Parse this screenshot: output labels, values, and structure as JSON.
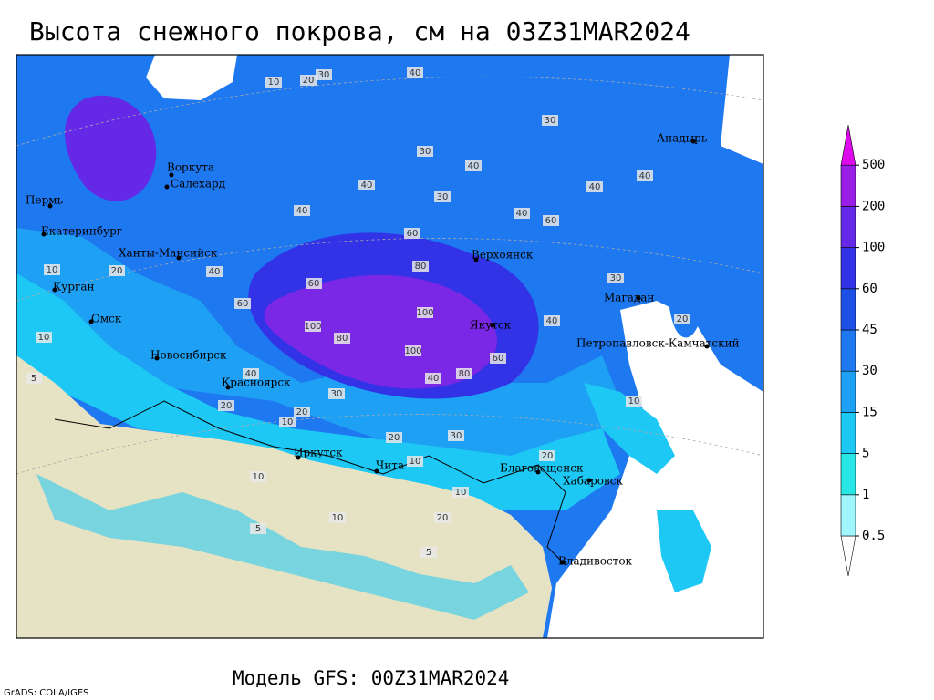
{
  "title": "Высота снежного покрова, см на 03Z31MAR2024",
  "footer": "Модель GFS: 00Z31MAR2024",
  "credit": "GrADS: COLA/IGES",
  "legend": {
    "levels": [
      0.5,
      1,
      5,
      15,
      30,
      45,
      60,
      100,
      200,
      500
    ],
    "colors": [
      "#ffffff",
      "#a0f5ff",
      "#28e6e6",
      "#1ec8f5",
      "#1ea0f5",
      "#1e78f0",
      "#1e50e6",
      "#3232e6",
      "#6428e6",
      "#9b1ee6",
      "#dc0aeb"
    ]
  },
  "cities": [
    "Воркута",
    "Салехард",
    "Пермь",
    "Екатеринбург",
    "Ханты-Мансийск",
    "Курган",
    "Омск",
    "Новосибирск",
    "Красноярск",
    "Иркутск",
    "Чита",
    "Верхоянск",
    "Якутск",
    "Магадан",
    "Анадырь",
    "Петропавловск-Камчатский",
    "Благовещенск",
    "Хабаровск",
    "Владивосток"
  ],
  "contour_labels": [
    40,
    30,
    20,
    10,
    30,
    30,
    40,
    40,
    30,
    40,
    60,
    80,
    60,
    100,
    100,
    80,
    100,
    60,
    80,
    40,
    30,
    20,
    10,
    20,
    30,
    10,
    10,
    20,
    10,
    5,
    5,
    10,
    20,
    40,
    40,
    60,
    40,
    20,
    10,
    10,
    5,
    20,
    40,
    40,
    60,
    10,
    20,
    40,
    30
  ]
}
